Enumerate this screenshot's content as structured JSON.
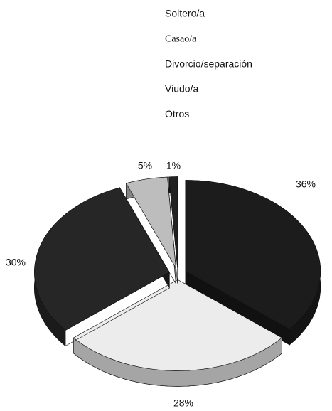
{
  "chart_data": {
    "type": "pie",
    "categories": [
      "Soltero/a",
      "Casao/a",
      "Divorcio/separación",
      "Viudo/a",
      "Otros"
    ],
    "values": [
      36,
      28,
      30,
      5,
      1
    ],
    "value_labels": [
      "36%",
      "28%",
      "30%",
      "5%",
      "1%"
    ],
    "colors": [
      "#1c1c1c",
      "#ececec",
      "#262626",
      "#bdbdbd",
      "#222222"
    ]
  }
}
